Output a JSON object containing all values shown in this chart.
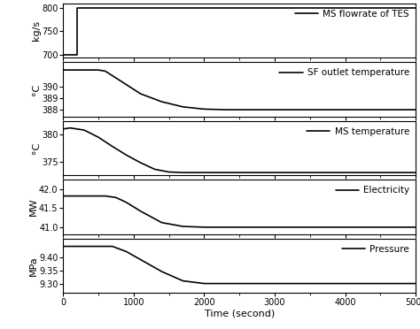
{
  "xlim": [
    0,
    5000
  ],
  "xlabel": "Time (second)",
  "panels": [
    {
      "ylabel": "kg/s",
      "yticks": [
        700,
        750,
        800
      ],
      "ylim": [
        693,
        810
      ],
      "legend": "MS flowrate of TES",
      "curve": {
        "x": [
          0,
          0,
          200,
          200,
          5000
        ],
        "y": [
          700,
          700,
          700,
          800,
          800
        ]
      }
    },
    {
      "ylabel": "°C",
      "yticks": [
        388,
        389,
        390
      ],
      "ylim": [
        387.4,
        392.2
      ],
      "legend": "SF outlet temperature",
      "curve": {
        "x": [
          0,
          500,
          600,
          700,
          900,
          1100,
          1400,
          1700,
          2000,
          2300,
          3000,
          5000
        ],
        "y": [
          391.5,
          391.5,
          391.4,
          391.0,
          390.2,
          389.4,
          388.7,
          388.25,
          388.05,
          388.0,
          388.0,
          388.0
        ]
      }
    },
    {
      "ylabel": "°C",
      "yticks": [
        375,
        380
      ],
      "ylim": [
        372.5,
        382.5
      ],
      "legend": "MS temperature",
      "curve": {
        "x": [
          0,
          100,
          300,
          500,
          700,
          900,
          1100,
          1300,
          1500,
          1700,
          2000,
          5000
        ],
        "y": [
          381.0,
          381.2,
          380.8,
          379.5,
          377.8,
          376.2,
          374.8,
          373.6,
          373.1,
          373.0,
          373.0,
          373.0
        ]
      }
    },
    {
      "ylabel": "MW",
      "yticks": [
        41,
        41.5,
        42
      ],
      "ylim": [
        40.82,
        42.25
      ],
      "legend": "Electricity",
      "curve": {
        "x": [
          0,
          600,
          750,
          900,
          1100,
          1400,
          1700,
          2000,
          2300,
          3000,
          5000
        ],
        "y": [
          41.82,
          41.82,
          41.78,
          41.65,
          41.42,
          41.12,
          41.02,
          41.0,
          41.0,
          41.0,
          41.0
        ]
      }
    },
    {
      "ylabel": "MPa",
      "yticks": [
        9.3,
        9.35,
        9.4
      ],
      "ylim": [
        9.265,
        9.47
      ],
      "legend": "Pressure",
      "curve": {
        "x": [
          0,
          600,
          700,
          900,
          1100,
          1400,
          1700,
          2000,
          2200,
          2500,
          5000
        ],
        "y": [
          9.44,
          9.44,
          9.44,
          9.42,
          9.39,
          9.345,
          9.31,
          9.3,
          9.3,
          9.3,
          9.3
        ]
      }
    }
  ],
  "line_color": "#000000",
  "line_width": 1.2,
  "background_color": "#ffffff",
  "tick_fontsize": 7,
  "label_fontsize": 8,
  "legend_fontsize": 7.5
}
